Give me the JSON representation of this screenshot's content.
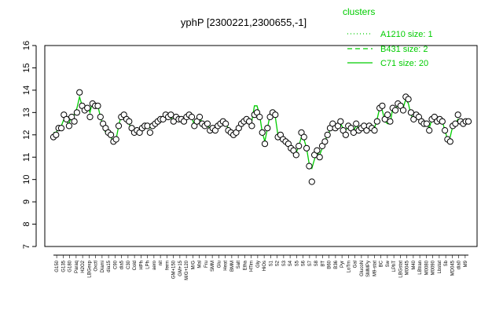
{
  "chart_data": {
    "type": "line",
    "title": "yphP [2300221,2300655,-1]",
    "xlabel": "",
    "ylabel": "",
    "ylim": [
      7,
      16
    ],
    "yticks": [
      7,
      8,
      9,
      10,
      11,
      12,
      13,
      14,
      15,
      16
    ],
    "grid": false,
    "legend": {
      "title": "clusters",
      "placement": "top-right",
      "entries": [
        {
          "label": "A1210 size: 1",
          "style": "dotted"
        },
        {
          "label": "B431 size: 2",
          "style": "dashed"
        },
        {
          "label": "C71 size: 20",
          "style": "solid"
        }
      ]
    },
    "colors": {
      "points_fill": "#ffffff",
      "points_stroke": "#000000",
      "cluster_line": "#00cc00"
    },
    "x_tick_labels": [
      "G150",
      "G135",
      "G180",
      "Paraq",
      "H2O2",
      "LBGexp",
      "Oxctl",
      "Diami",
      "dia15",
      "C90",
      "dia5",
      "C30",
      "Cold",
      "HPh",
      "LPh",
      "aero",
      "nit",
      "ferm",
      "GM+150",
      "GM+15",
      "M/G+120",
      "M/G",
      "Mal",
      "Fru",
      "SMM",
      "Glu",
      "Heat",
      "BMM",
      "Salt",
      "Etha",
      "HTim",
      "Gly",
      "HiOs",
      "S1",
      "S2",
      "S3",
      "S4",
      "S5",
      "S6",
      "S7",
      "S8",
      "BT",
      "B60",
      "B36",
      "Pyr",
      "LoTm",
      "Gal",
      "GlucoN",
      "SMMPy",
      "M9-stat",
      "BC",
      "Sw",
      "LPhT",
      "LBGstat",
      "M0045",
      "M40",
      "LBtran",
      "M0080",
      "M0090",
      "Lbstat",
      "Sb",
      "MD045",
      "dia0",
      "M9"
    ],
    "x_tick_labels_note": "visible tick labels only; many labels overlap and are illegible in the source",
    "x": [
      1,
      2,
      3,
      4,
      5,
      6,
      7,
      8,
      9,
      10,
      11,
      12,
      13,
      14,
      15,
      16,
      17,
      18,
      19,
      20,
      21,
      22,
      23,
      24,
      25,
      26,
      27,
      28,
      29,
      30,
      31,
      32,
      33,
      34,
      35,
      36,
      37,
      38,
      39,
      40,
      41,
      42,
      43,
      44,
      45,
      46,
      47,
      48,
      49,
      50,
      51,
      52,
      53,
      54,
      55,
      56,
      57,
      58,
      59,
      60,
      61,
      62,
      63,
      64,
      65,
      66,
      67,
      68,
      69,
      70,
      71,
      72,
      73,
      74,
      75,
      76,
      77,
      78,
      79,
      80,
      81,
      82,
      83,
      84,
      85,
      86,
      87,
      88,
      89,
      90,
      91,
      92,
      93,
      94,
      95,
      96,
      97,
      98,
      99,
      100,
      101,
      102,
      103,
      104,
      105,
      106,
      107,
      108,
      109,
      110,
      111,
      112,
      113,
      114,
      115,
      116,
      117,
      118,
      119,
      120,
      121,
      122,
      123,
      124,
      125,
      126,
      127,
      128,
      129,
      130,
      131,
      132,
      133,
      134,
      135,
      136,
      137,
      138,
      139,
      140,
      141,
      142,
      143,
      144,
      145,
      146,
      147,
      148,
      149,
      150,
      151,
      152,
      153,
      154,
      155,
      156,
      157,
      158,
      159,
      160
    ],
    "series": [
      {
        "values": [
          11.9,
          12.0,
          12.3,
          12.3,
          12.9,
          12.7,
          12.4,
          12.8,
          12.6,
          13.0,
          13.9,
          13.3,
          13.1,
          13.2,
          12.8,
          13.4,
          13.3,
          13.3,
          12.8,
          12.5,
          12.3,
          12.1,
          12.0,
          11.7,
          11.8,
          12.4,
          12.8,
          12.9,
          12.7,
          12.6,
          12.3,
          12.1,
          12.2,
          12.1,
          12.3,
          12.4,
          12.4,
          12.1,
          12.4,
          12.5,
          12.6,
          12.7,
          12.7,
          12.9,
          12.8,
          12.9,
          12.6,
          12.8,
          12.7,
          12.7,
          12.6,
          12.8,
          12.9,
          12.8,
          12.4,
          12.6,
          12.8,
          12.5,
          12.4,
          12.5,
          12.2,
          12.3,
          12.2,
          12.4,
          12.5,
          12.6,
          12.5,
          12.2,
          12.1,
          12.0,
          12.1,
          12.3,
          12.5,
          12.6,
          12.7,
          12.6,
          12.4,
          12.9,
          13.0,
          12.8,
          12.1,
          11.6,
          12.3,
          12.8,
          13.0,
          12.9,
          11.9,
          12.0,
          11.8,
          11.7,
          11.6,
          11.4,
          11.3,
          11.1,
          11.5,
          12.1,
          11.9,
          11.4,
          10.6,
          9.9,
          11.1,
          11.3,
          11.0,
          11.5,
          11.7,
          12.0,
          12.3,
          12.5,
          12.3,
          12.4,
          12.6,
          12.2,
          12.0,
          12.4,
          12.3,
          12.1,
          12.5,
          12.2,
          12.3,
          12.4,
          12.2,
          12.4,
          12.3,
          12.2,
          12.6,
          13.2,
          13.3,
          12.7,
          12.9,
          12.6,
          13.2,
          13.1,
          13.4,
          13.3,
          13.1,
          13.7,
          13.6,
          13.0,
          12.7,
          12.9,
          12.8,
          12.6,
          12.5,
          12.5,
          12.2,
          12.7,
          12.8,
          12.6,
          12.7,
          12.6,
          12.2,
          11.8,
          11.7,
          12.4,
          12.5,
          12.9,
          12.6,
          12.5,
          12.6,
          12.6
        ],
        "line_values": [
          12.1,
          12.1,
          12.3,
          12.4,
          12.7,
          12.6,
          12.5,
          12.9,
          12.9,
          13.2,
          13.7,
          13.3,
          13.2,
          13.3,
          13.0,
          13.5,
          13.4,
          13.3,
          12.8,
          12.4,
          12.1,
          12.0,
          11.9,
          11.7,
          11.8,
          12.4,
          12.9,
          12.9,
          12.6,
          12.5,
          12.2,
          12.0,
          12.1,
          12.1,
          12.2,
          12.3,
          12.4,
          12.3,
          12.4,
          12.5,
          12.6,
          12.6,
          12.7,
          12.8,
          12.7,
          12.8,
          12.6,
          12.7,
          12.7,
          12.7,
          12.6,
          12.8,
          12.8,
          12.8,
          12.4,
          12.6,
          12.7,
          12.6,
          12.4,
          12.4,
          12.3,
          12.3,
          12.2,
          12.4,
          12.5,
          12.6,
          12.5,
          12.3,
          12.2,
          12.1,
          12.1,
          12.4,
          12.6,
          12.7,
          12.7,
          12.6,
          12.6,
          13.3,
          13.3,
          12.9,
          12.1,
          11.7,
          12.3,
          12.9,
          13.1,
          12.8,
          12.0,
          12.0,
          11.8,
          11.8,
          11.6,
          11.5,
          11.3,
          11.2,
          11.5,
          11.9,
          11.8,
          11.4,
          10.7,
          10.5,
          10.9,
          11.2,
          11.1,
          11.4,
          11.7,
          12.0,
          12.2,
          12.4,
          12.3,
          12.3,
          12.5,
          12.3,
          12.2,
          12.4,
          12.3,
          12.2,
          12.4,
          12.3,
          12.3,
          12.3,
          12.3,
          12.3,
          12.3,
          12.3,
          12.7,
          13.2,
          13.1,
          12.6,
          12.5,
          12.5,
          13.2,
          13.2,
          13.3,
          13.2,
          13.2,
          13.6,
          13.4,
          12.9,
          12.7,
          12.8,
          12.7,
          12.6,
          12.5,
          12.5,
          12.3,
          12.7,
          12.8,
          12.7,
          12.7,
          12.6,
          12.2,
          11.8,
          11.9,
          12.4,
          12.5,
          12.7,
          12.6,
          12.6,
          12.6,
          12.6
        ]
      }
    ]
  }
}
